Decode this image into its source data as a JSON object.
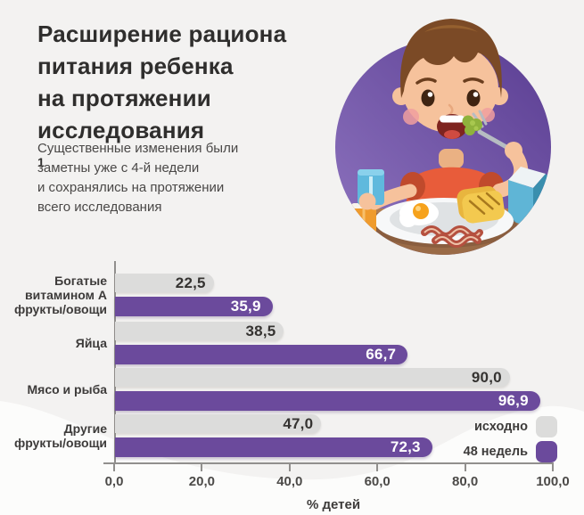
{
  "page": {
    "background": "#f3f2f1",
    "accent_purple": "#6b4a9c",
    "bar_gray": "#dcdcdb"
  },
  "header": {
    "title_lines": [
      "Расширение рациона",
      "питания ребенка",
      "на протяжении",
      "исследования"
    ],
    "title_superscript": "1",
    "subtitle_lines": [
      "Существенные изменения были",
      "заметны уже с 4-й недели",
      "и сохранялись на протяжении",
      "всего исследования"
    ]
  },
  "illustration": {
    "name": "boy-eating-breakfast",
    "circle_color_top": "#5a3d92",
    "circle_color_bottom": "#8e74bf"
  },
  "chart_data": {
    "type": "bar",
    "orientation": "horizontal",
    "categories": [
      "Богатые витамином А фрукты/овощи",
      "Яйца",
      "Мясо и рыба",
      "Другие фрукты/овощи"
    ],
    "category_label_lines": [
      [
        "Богатые",
        "витамином А",
        "фрукты/овощи"
      ],
      [
        "Яйца"
      ],
      [
        "Мясо и рыба"
      ],
      [
        "Другие",
        "фрукты/овощи"
      ]
    ],
    "series": [
      {
        "name": "исходно",
        "color": "#dcdcdb",
        "text_color": "#353331",
        "values": [
          22.5,
          38.5,
          90.0,
          47.0
        ],
        "labels": [
          "22,5",
          "38,5",
          "90,0",
          "47,0"
        ]
      },
      {
        "name": "48 недель",
        "color": "#6b4a9c",
        "text_color": "#ffffff",
        "values": [
          35.9,
          66.7,
          96.9,
          72.3
        ],
        "labels": [
          "35,9",
          "66,7",
          "96,9",
          "72,3"
        ]
      }
    ],
    "xlabel": "% детей",
    "x_ticks": [
      "0,0",
      "20,0",
      "40,0",
      "60,0",
      "80,0",
      "100,0"
    ],
    "xlim": [
      0,
      100
    ],
    "grid": false,
    "legend_position": "bottom-right"
  }
}
